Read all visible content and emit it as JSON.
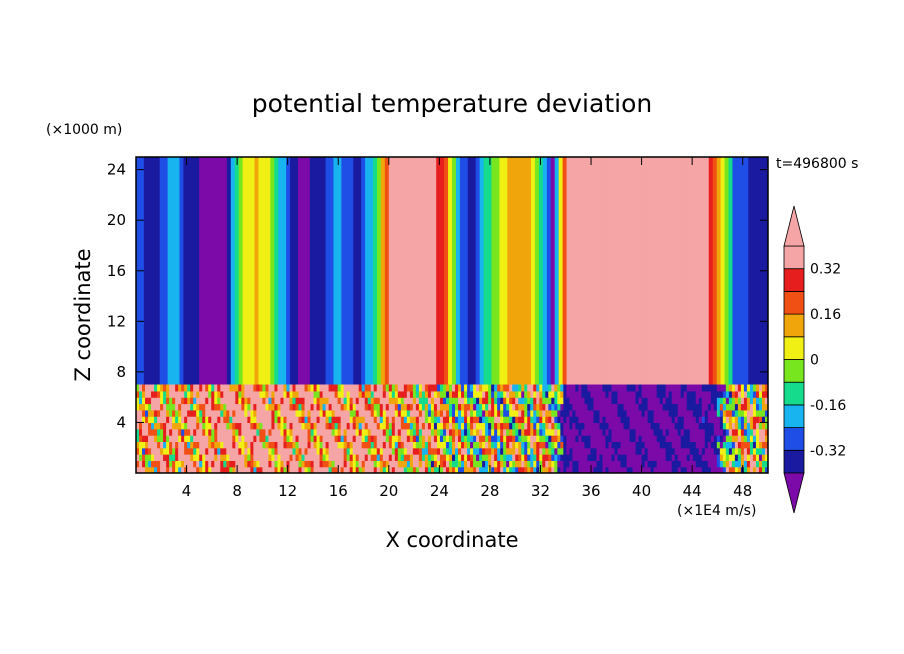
{
  "chart_data": {
    "type": "heatmap",
    "title": "potential temperature deviation",
    "xlabel": "X coordinate",
    "ylabel": "Z coordinate",
    "x_unit": "(×1E4 m/s)",
    "y_unit": "(×1000 m)",
    "time_label": "t=496800 s",
    "xlim": [
      0,
      50
    ],
    "ylim": [
      0,
      25
    ],
    "x_ticks": [
      4,
      8,
      12,
      16,
      20,
      24,
      28,
      32,
      36,
      40,
      44,
      48
    ],
    "y_ticks": [
      4,
      8,
      12,
      16,
      20,
      24
    ],
    "colorbar": {
      "levels": [
        -0.4,
        -0.32,
        -0.24,
        -0.16,
        -0.08,
        0,
        0.08,
        0.16,
        0.24,
        0.32,
        0.4
      ],
      "tick_labels": [
        "0.32",
        "0.16",
        "0",
        "-0.16",
        "-0.32"
      ],
      "tick_values": [
        0.32,
        0.16,
        0,
        -0.16,
        -0.32
      ],
      "colors": [
        "#7b0aa9",
        "#1a1aa0",
        "#1e4ee6",
        "#18b4f0",
        "#14dc8c",
        "#78e61e",
        "#f0f014",
        "#f0a50a",
        "#f05014",
        "#e61e1e",
        "#f5a5a5"
      ]
    },
    "interface_z": 7,
    "upper_column_profile": [
      {
        "x": 0,
        "v": -0.3
      },
      {
        "x": 1.5,
        "v": -0.36
      },
      {
        "x": 3,
        "v": -0.18
      },
      {
        "x": 4,
        "v": -0.34
      },
      {
        "x": 5.5,
        "v": -0.44
      },
      {
        "x": 7,
        "v": -0.42
      },
      {
        "x": 8.5,
        "v": 0
      },
      {
        "x": 9.5,
        "v": 0.1
      },
      {
        "x": 10.5,
        "v": 0.02
      },
      {
        "x": 11.5,
        "v": -0.2
      },
      {
        "x": 13,
        "v": -0.44
      },
      {
        "x": 14.5,
        "v": -0.36
      },
      {
        "x": 16,
        "v": -0.2
      },
      {
        "x": 17.5,
        "v": -0.36
      },
      {
        "x": 19,
        "v": -0.12
      },
      {
        "x": 20,
        "v": 0.3
      },
      {
        "x": 21,
        "v": 0.45
      },
      {
        "x": 23,
        "v": 0.45
      },
      {
        "x": 24.5,
        "v": 0.2
      },
      {
        "x": 25.5,
        "v": -0.2
      },
      {
        "x": 26.5,
        "v": -0.36
      },
      {
        "x": 28,
        "v": -0.1
      },
      {
        "x": 29.5,
        "v": 0.12
      },
      {
        "x": 31,
        "v": 0.1
      },
      {
        "x": 32,
        "v": -0.1
      },
      {
        "x": 33,
        "v": -0.42
      },
      {
        "x": 34,
        "v": 0.3
      },
      {
        "x": 35,
        "v": 0.45
      },
      {
        "x": 45,
        "v": 0.45
      },
      {
        "x": 46.5,
        "v": 0
      },
      {
        "x": 47.5,
        "v": -0.3
      },
      {
        "x": 50,
        "v": -0.35
      }
    ],
    "lower_layer_profile": [
      {
        "x": 0,
        "v": 0.2
      },
      {
        "x": 4,
        "v": 0.25
      },
      {
        "x": 8,
        "v": 0.35
      },
      {
        "x": 12,
        "v": 0.3
      },
      {
        "x": 16,
        "v": 0.3
      },
      {
        "x": 20,
        "v": 0.25
      },
      {
        "x": 24,
        "v": 0.1
      },
      {
        "x": 27,
        "v": 0
      },
      {
        "x": 30,
        "v": 0.05
      },
      {
        "x": 33,
        "v": 0.05
      },
      {
        "x": 34,
        "v": -0.42
      },
      {
        "x": 40,
        "v": -0.42
      },
      {
        "x": 46,
        "v": -0.4
      },
      {
        "x": 47,
        "v": 0.05
      },
      {
        "x": 50,
        "v": 0.1
      }
    ]
  }
}
